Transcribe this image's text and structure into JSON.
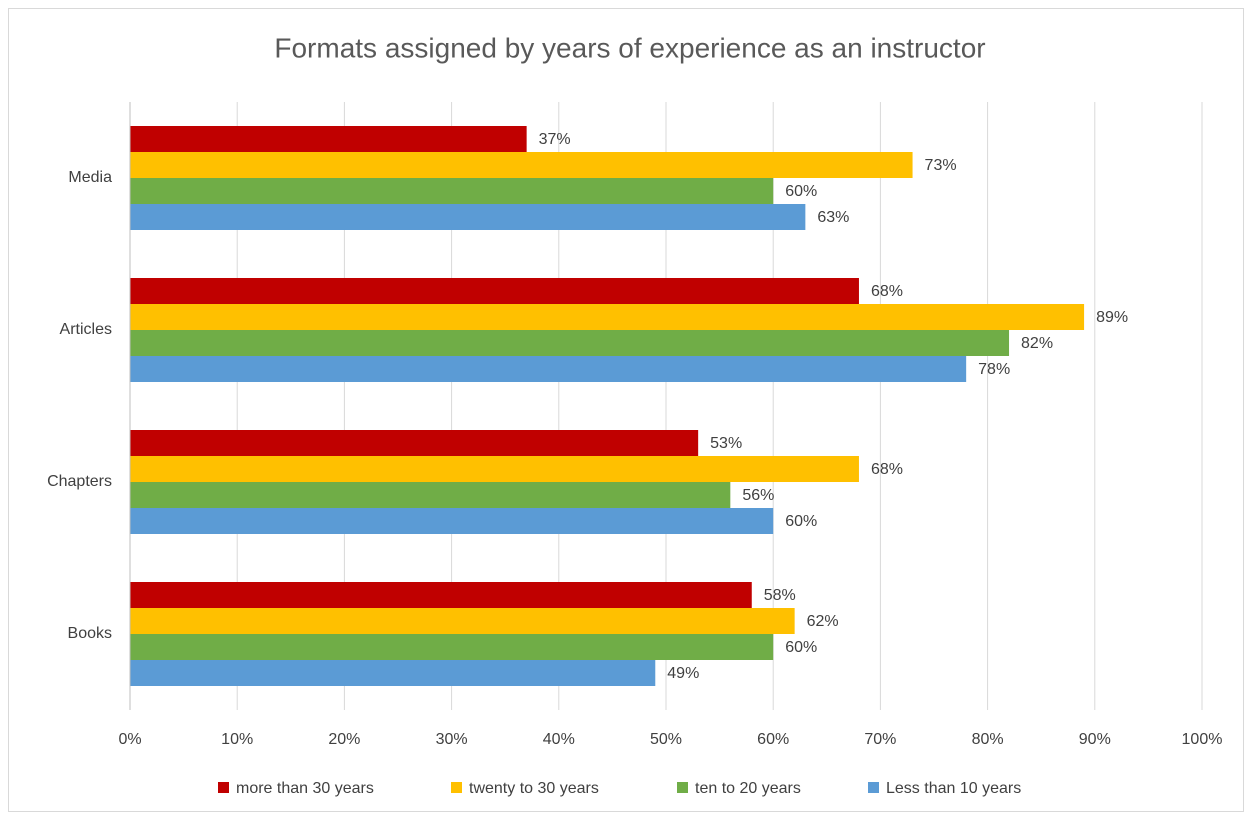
{
  "chart_data": {
    "type": "hbar",
    "title": "Formats assigned by years of experience as an instructor",
    "categories": [
      "Media",
      "Articles",
      "Chapters",
      "Books"
    ],
    "series": [
      {
        "name": "more than 30 years",
        "color": "#c00000",
        "values": [
          37,
          68,
          53,
          58
        ],
        "value_labels": [
          "37%",
          "68%",
          "53%",
          "58%"
        ]
      },
      {
        "name": "twenty to 30 years",
        "color": "#ffc000",
        "values": [
          73,
          89,
          68,
          62
        ],
        "value_labels": [
          "73%",
          "89%",
          "68%",
          "62%"
        ]
      },
      {
        "name": "ten to 20 years",
        "color": "#70ad47",
        "values": [
          60,
          82,
          56,
          60
        ],
        "value_labels": [
          "60%",
          "82%",
          "56%",
          "60%"
        ]
      },
      {
        "name": "Less than 10 years",
        "color": "#5b9bd5",
        "values": [
          63,
          78,
          60,
          49
        ],
        "value_labels": [
          "63%",
          "78%",
          "60%",
          "49%"
        ]
      }
    ],
    "xlim": [
      0,
      100
    ],
    "xticks": [
      {
        "value": 0,
        "label": "0%"
      },
      {
        "value": 10,
        "label": "10%"
      },
      {
        "value": 20,
        "label": "20%"
      },
      {
        "value": 30,
        "label": "30%"
      },
      {
        "value": 40,
        "label": "40%"
      },
      {
        "value": 50,
        "label": "50%"
      },
      {
        "value": 60,
        "label": "60%"
      },
      {
        "value": 70,
        "label": "70%"
      },
      {
        "value": 80,
        "label": "80%"
      },
      {
        "value": 90,
        "label": "90%"
      },
      {
        "value": 100,
        "label": "100%"
      }
    ],
    "grid": true,
    "legend": "bottom"
  }
}
